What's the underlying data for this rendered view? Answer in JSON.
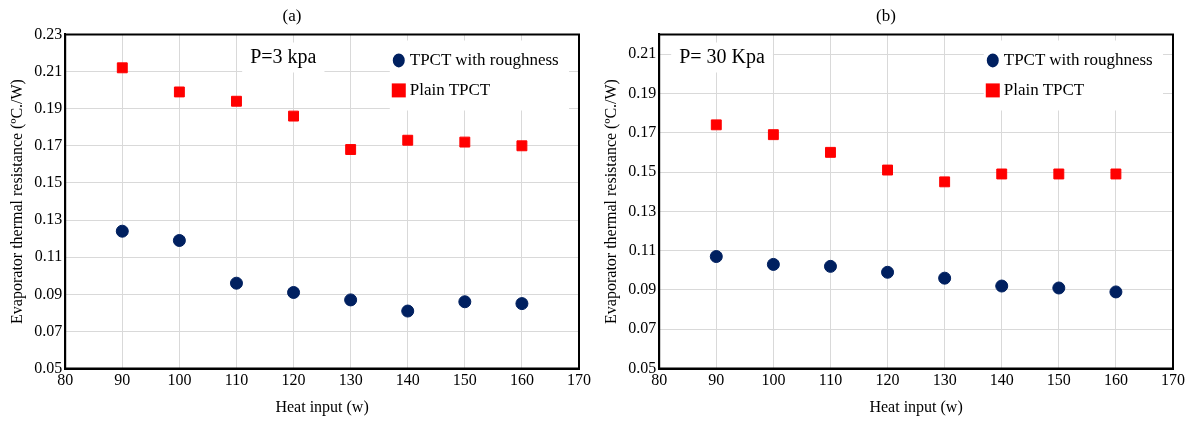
{
  "chart_data": [
    {
      "type": "scatter",
      "title": "(a)",
      "xlabel": "Heat input (w)",
      "ylabel": "Evaporator thermal resistance (ºC./W)",
      "annotations": [
        "P=3 kpa"
      ],
      "x": [
        90,
        100,
        110,
        120,
        130,
        140,
        150,
        160
      ],
      "xlim": [
        80,
        170
      ],
      "xticks": [
        80,
        90,
        100,
        110,
        120,
        130,
        140,
        150,
        160,
        170
      ],
      "ylim": [
        0.05,
        0.23
      ],
      "yticks": [
        0.05,
        0.07,
        0.09,
        0.11,
        0.13,
        0.15,
        0.17,
        0.19,
        0.21,
        0.23
      ],
      "grid": true,
      "legend": "top right",
      "series": [
        {
          "name": "TPCT with roughness",
          "color": "#002060",
          "marker": "circle",
          "values": [
            0.124,
            0.119,
            0.096,
            0.091,
            0.087,
            0.081,
            0.086,
            0.085
          ]
        },
        {
          "name": "Plain TPCT",
          "color": "#ff0000",
          "marker": "square",
          "values": [
            0.212,
            0.199,
            0.194,
            0.186,
            0.168,
            0.173,
            0.172,
            0.17
          ]
        }
      ]
    },
    {
      "type": "scatter",
      "title": "(b)",
      "xlabel": "Heat input (w)",
      "ylabel": "Evaporator thermal resistance (ºC./W)",
      "annotations": [
        "P= 30 Kpa"
      ],
      "x": [
        90,
        100,
        110,
        120,
        130,
        140,
        150,
        160
      ],
      "xlim": [
        80,
        170
      ],
      "xticks": [
        80,
        90,
        100,
        110,
        120,
        130,
        140,
        150,
        160,
        170
      ],
      "ylim": [
        0.05,
        0.22
      ],
      "yticks": [
        0.05,
        0.07,
        0.09,
        0.11,
        0.13,
        0.15,
        0.17,
        0.19,
        0.21
      ],
      "grid": true,
      "legend": "top right",
      "series": [
        {
          "name": "TPCT with roughness",
          "color": "#002060",
          "marker": "circle",
          "values": [
            0.107,
            0.103,
            0.102,
            0.099,
            0.096,
            0.092,
            0.091,
            0.089
          ]
        },
        {
          "name": "Plain TPCT",
          "color": "#ff0000",
          "marker": "square",
          "values": [
            0.174,
            0.169,
            0.16,
            0.151,
            0.145,
            0.149,
            0.149,
            0.149
          ]
        }
      ]
    }
  ]
}
